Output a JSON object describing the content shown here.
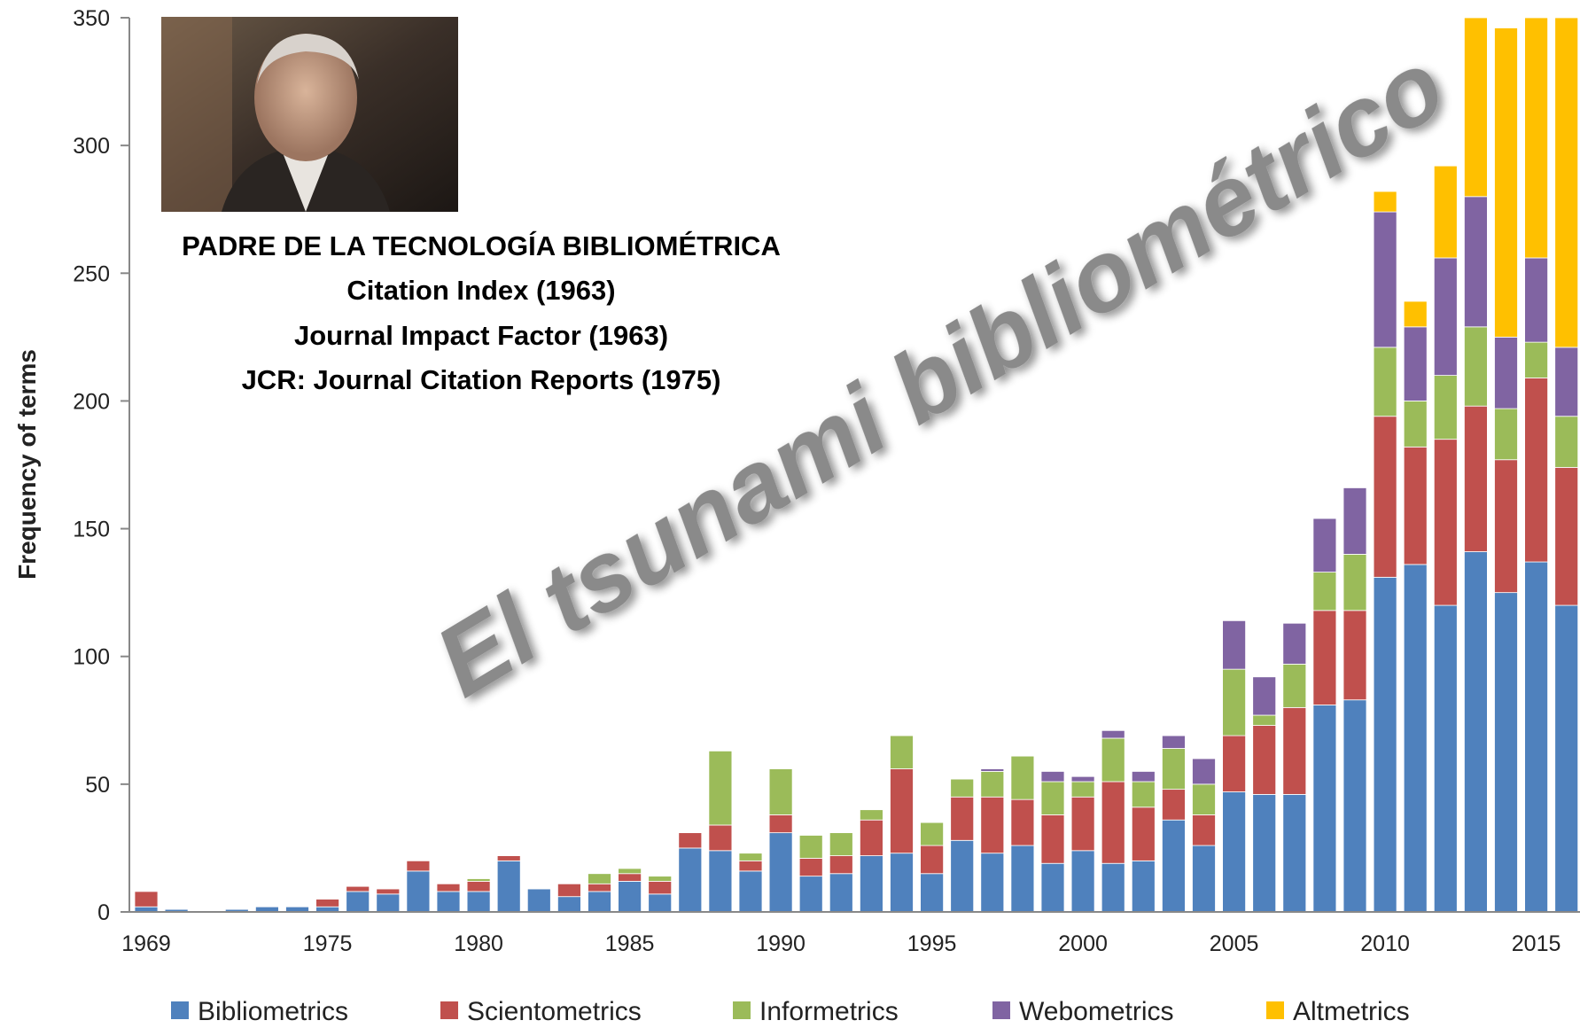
{
  "chart_data": {
    "type": "stacked-bar",
    "ylabel": "Frequency of terms",
    "annotations": [
      "PADRE DE LA TECNOLOGÍA BIBLIOMÉTRICA",
      "Citation Index (1963)",
      "Journal Impact Factor (1963)",
      "JCR: Journal Citation Reports  (1975)"
    ],
    "watermark": "El tsunami bibliométrico",
    "categories": [
      "1969",
      null,
      null,
      null,
      null,
      null,
      "1975",
      null,
      null,
      null,
      null,
      "1980",
      null,
      null,
      null,
      null,
      "1985",
      null,
      null,
      null,
      null,
      "1990",
      null,
      null,
      null,
      null,
      "1995",
      null,
      null,
      null,
      null,
      "2000",
      null,
      null,
      null,
      null,
      "2005",
      null,
      null,
      null,
      null,
      "2010",
      null,
      null,
      null,
      null,
      "2015",
      null
    ],
    "series": [
      {
        "name": "Bibliometrics",
        "color": "#4f81bd",
        "values": [
          2,
          1,
          0,
          1,
          2,
          2,
          2,
          8,
          7,
          16,
          8,
          8,
          20,
          9,
          6,
          8,
          12,
          7,
          25,
          24,
          16,
          31,
          14,
          15,
          22,
          23,
          15,
          28,
          23,
          26,
          19,
          24,
          19,
          20,
          36,
          26,
          47,
          46,
          46,
          81,
          83,
          131,
          136,
          120,
          141,
          125,
          137,
          120
        ]
      },
      {
        "name": "Scientometrics",
        "color": "#c0504d",
        "values": [
          6,
          0,
          0,
          0,
          0,
          0,
          3,
          2,
          2,
          4,
          3,
          4,
          2,
          0,
          5,
          3,
          3,
          5,
          6,
          10,
          4,
          7,
          7,
          7,
          14,
          33,
          11,
          17,
          22,
          18,
          19,
          21,
          32,
          21,
          12,
          12,
          22,
          27,
          34,
          37,
          35,
          63,
          46,
          65,
          57,
          52,
          72,
          54
        ]
      },
      {
        "name": "Informetrics",
        "color": "#9bbb59",
        "values": [
          0,
          0,
          0,
          0,
          0,
          0,
          0,
          0,
          0,
          0,
          0,
          1,
          0,
          0,
          0,
          4,
          2,
          2,
          0,
          29,
          3,
          18,
          9,
          9,
          4,
          13,
          9,
          7,
          10,
          17,
          13,
          6,
          17,
          10,
          16,
          12,
          26,
          4,
          17,
          15,
          22,
          27,
          18,
          25,
          31,
          20,
          14,
          20
        ]
      },
      {
        "name": "Webometrics",
        "color": "#8064a2",
        "values": [
          0,
          0,
          0,
          0,
          0,
          0,
          0,
          0,
          0,
          0,
          0,
          0,
          0,
          0,
          0,
          0,
          0,
          0,
          0,
          0,
          0,
          0,
          0,
          0,
          0,
          0,
          0,
          0,
          1,
          0,
          4,
          2,
          3,
          4,
          5,
          10,
          19,
          15,
          16,
          21,
          26,
          53,
          29,
          46,
          51,
          28,
          33,
          27
        ]
      },
      {
        "name": "Altmetrics",
        "color": "#ffc000",
        "values": [
          0,
          0,
          0,
          0,
          0,
          0,
          0,
          0,
          0,
          0,
          0,
          0,
          0,
          0,
          0,
          0,
          0,
          0,
          0,
          0,
          0,
          0,
          0,
          0,
          0,
          0,
          0,
          0,
          0,
          0,
          0,
          0,
          0,
          0,
          0,
          0,
          0,
          0,
          0,
          0,
          0,
          8,
          10,
          36,
          70,
          121,
          94,
          129
        ]
      }
    ],
    "ylim": [
      0,
      350
    ],
    "yticks": [
      0,
      50,
      100,
      150,
      200,
      250,
      300,
      350
    ],
    "grid": false
  }
}
